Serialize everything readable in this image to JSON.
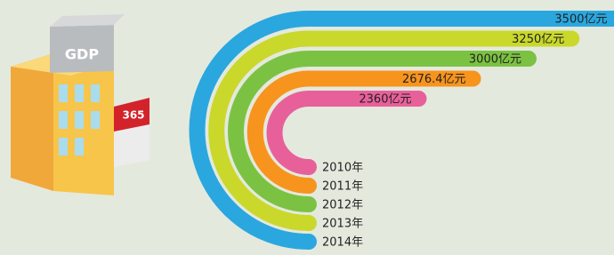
{
  "chart_data": {
    "type": "bar",
    "categories": [
      "2010年",
      "2011年",
      "2012年",
      "2013年",
      "2014年"
    ],
    "values": [
      2360,
      2676.4,
      3000,
      3250,
      3500
    ],
    "value_labels": [
      "2360亿元",
      "2676.4亿元",
      "3000亿元",
      "3250亿元",
      "3500亿元"
    ],
    "colors": [
      "#e8609a",
      "#f7941d",
      "#7cc242",
      "#c9d82b",
      "#2aa7df"
    ],
    "annotations": [
      "GDP",
      "365"
    ]
  }
}
